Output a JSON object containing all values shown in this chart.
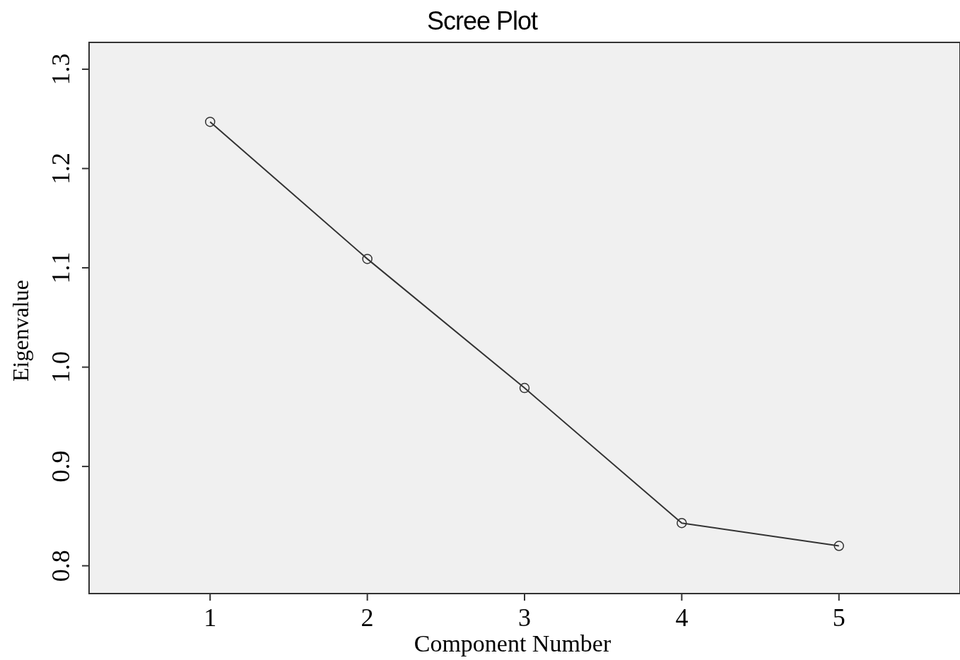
{
  "chart_data": {
    "type": "line",
    "title": "Scree Plot",
    "xlabel": "Component Number",
    "ylabel": "Eigenvalue",
    "x": [
      1,
      2,
      3,
      4,
      5
    ],
    "series": [
      {
        "color": "#333333",
        "values": [
          1.247,
          1.109,
          0.979,
          0.843,
          0.82
        ]
      }
    ],
    "marker": "circle",
    "line_style": "solid",
    "grid": false,
    "xlim": [
      0.23,
      5.77
    ],
    "xticks": [
      1,
      2,
      3,
      4,
      5
    ],
    "ylim": [
      0.772,
      1.327
    ],
    "yticks": [
      {
        "value": 0.8,
        "label": "0.8"
      },
      {
        "value": 0.9,
        "label": "0.9"
      },
      {
        "value": 1.0,
        "label": "1.0"
      },
      {
        "value": 1.1,
        "label": "1.1"
      },
      {
        "value": 1.2,
        "label": "1.2"
      },
      {
        "value": 1.3,
        "label": "1.3"
      }
    ]
  }
}
